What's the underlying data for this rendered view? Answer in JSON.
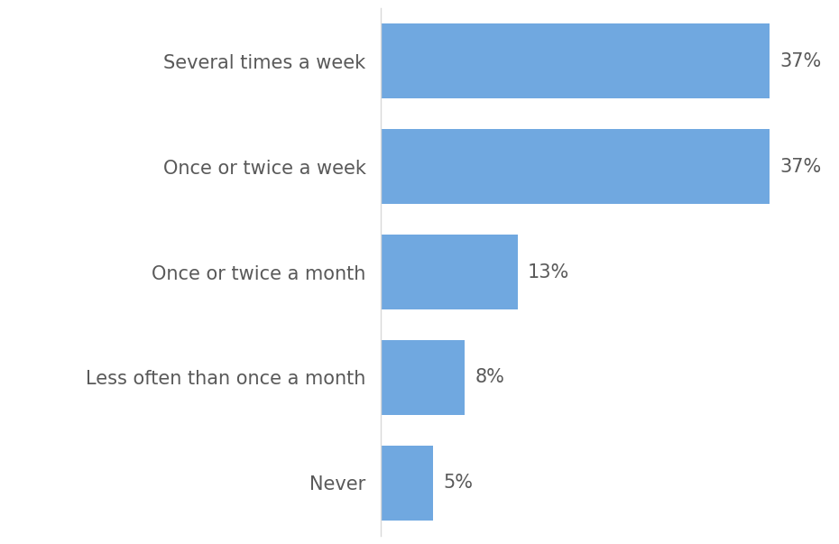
{
  "chart_data": {
    "type": "bar",
    "orientation": "horizontal",
    "categories": [
      "Several times a week",
      "Once or twice a week",
      "Once or twice a month",
      "Less often than once a month",
      "Never"
    ],
    "values": [
      37,
      37,
      13,
      8,
      5
    ],
    "value_labels": [
      "37%",
      "37%",
      "13%",
      "8%",
      "5%"
    ],
    "color": "#70a8e0",
    "xlim": [
      0,
      40
    ],
    "data_labels": true,
    "tick_labels": "y",
    "grid": false
  }
}
